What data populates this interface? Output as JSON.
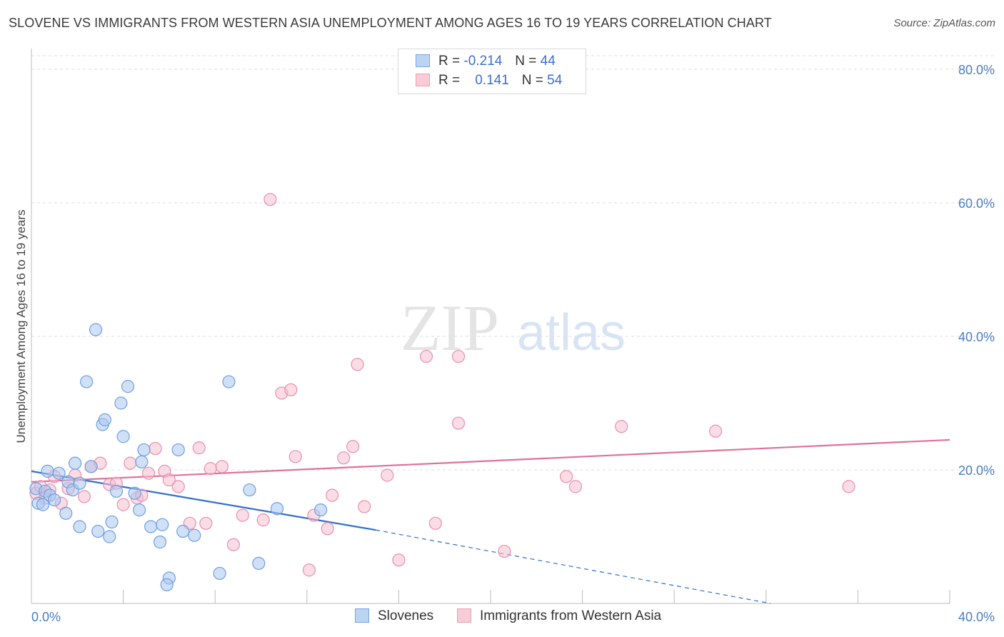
{
  "title": "SLOVENE VS IMMIGRANTS FROM WESTERN ASIA UNEMPLOYMENT AMONG AGES 16 TO 19 YEARS CORRELATION CHART",
  "source": "Source: ZipAtlas.com",
  "watermark": {
    "zip": "ZIP",
    "atlas": "atlas"
  },
  "legend": {
    "rows": [
      {
        "r_label": "R =",
        "r_value": "-0.214",
        "n_label": "N =",
        "n_value": "44"
      },
      {
        "r_label": "R =",
        "r_value": "0.141",
        "n_label": "N =",
        "n_value": "54"
      }
    ]
  },
  "colors": {
    "blue_fill": "#a9c6ee",
    "blue_stroke": "#6f9fe0",
    "blue_line": "#2f6fcf",
    "pink_fill": "#f6bfd0",
    "pink_stroke": "#e98fae",
    "pink_line": "#e0709a",
    "tick_text": "#4a7cc7",
    "grid": "#dddddd"
  },
  "chart_data": {
    "type": "scatter",
    "title": "SLOVENE VS IMMIGRANTS FROM WESTERN ASIA UNEMPLOYMENT AMONG AGES 16 TO 19 YEARS CORRELATION CHART",
    "xlabel": "",
    "ylabel": "Unemployment Among Ages 16 to 19 years",
    "xlim": [
      0,
      40
    ],
    "ylim": [
      0,
      80
    ],
    "x_tick_labels": [
      "0.0%",
      "40.0%"
    ],
    "y_ticks": [
      20,
      40,
      60,
      80
    ],
    "y_tick_labels": [
      "20.0%",
      "40.0%",
      "60.0%",
      "80.0%"
    ],
    "grid": true,
    "legend_position": "bottom",
    "series": [
      {
        "name": "Slovenes",
        "color": "#a9c6ee",
        "points": [
          [
            0.2,
            17.2
          ],
          [
            0.3,
            15.0
          ],
          [
            0.5,
            14.8
          ],
          [
            0.6,
            16.8
          ],
          [
            0.7,
            19.8
          ],
          [
            0.8,
            16.2
          ],
          [
            1.0,
            15.5
          ],
          [
            1.2,
            19.5
          ],
          [
            1.5,
            13.5
          ],
          [
            1.6,
            18.2
          ],
          [
            1.8,
            17.0
          ],
          [
            1.9,
            21.0
          ],
          [
            2.1,
            18.0
          ],
          [
            2.1,
            11.5
          ],
          [
            2.4,
            33.2
          ],
          [
            2.6,
            20.5
          ],
          [
            2.9,
            10.8
          ],
          [
            3.1,
            26.8
          ],
          [
            3.2,
            27.5
          ],
          [
            3.4,
            10.0
          ],
          [
            3.5,
            12.2
          ],
          [
            3.7,
            16.8
          ],
          [
            3.9,
            30.0
          ],
          [
            4.0,
            25.0
          ],
          [
            4.2,
            32.5
          ],
          [
            4.5,
            16.5
          ],
          [
            4.7,
            14.0
          ],
          [
            4.8,
            21.2
          ],
          [
            4.9,
            23.0
          ],
          [
            5.2,
            11.5
          ],
          [
            5.6,
            9.2
          ],
          [
            5.7,
            11.8
          ],
          [
            6.0,
            3.8
          ],
          [
            5.9,
            2.8
          ],
          [
            6.6,
            10.8
          ],
          [
            7.1,
            10.2
          ],
          [
            8.2,
            4.5
          ],
          [
            8.6,
            33.2
          ],
          [
            9.5,
            17.0
          ],
          [
            9.9,
            6.0
          ],
          [
            10.7,
            14.2
          ],
          [
            12.6,
            14.0
          ],
          [
            2.8,
            41.0
          ],
          [
            6.4,
            23.0
          ]
        ]
      },
      {
        "name": "Immigrants from Western Asia",
        "color": "#f6bfd0",
        "points": [
          [
            0.2,
            16.5
          ],
          [
            0.4,
            17.5
          ],
          [
            0.6,
            15.8
          ],
          [
            0.8,
            17.0
          ],
          [
            1.0,
            19.0
          ],
          [
            1.3,
            15.0
          ],
          [
            1.6,
            17.2
          ],
          [
            1.9,
            19.2
          ],
          [
            2.3,
            16.0
          ],
          [
            2.6,
            20.5
          ],
          [
            3.0,
            21.0
          ],
          [
            3.4,
            17.8
          ],
          [
            3.7,
            18.0
          ],
          [
            4.0,
            14.8
          ],
          [
            4.3,
            21.0
          ],
          [
            4.6,
            15.8
          ],
          [
            4.8,
            16.2
          ],
          [
            5.1,
            19.5
          ],
          [
            5.4,
            23.2
          ],
          [
            5.8,
            19.8
          ],
          [
            6.0,
            18.5
          ],
          [
            6.4,
            17.5
          ],
          [
            6.9,
            12.0
          ],
          [
            7.3,
            23.3
          ],
          [
            7.6,
            12.0
          ],
          [
            7.8,
            20.2
          ],
          [
            8.3,
            20.5
          ],
          [
            8.8,
            8.8
          ],
          [
            9.2,
            13.2
          ],
          [
            10.1,
            12.5
          ],
          [
            10.4,
            60.5
          ],
          [
            10.9,
            31.5
          ],
          [
            11.3,
            32.0
          ],
          [
            11.5,
            22.0
          ],
          [
            12.3,
            13.2
          ],
          [
            12.9,
            11.2
          ],
          [
            13.1,
            16.2
          ],
          [
            13.6,
            21.8
          ],
          [
            14.0,
            23.5
          ],
          [
            14.2,
            35.8
          ],
          [
            14.5,
            14.5
          ],
          [
            15.5,
            19.2
          ],
          [
            16.0,
            6.5
          ],
          [
            17.2,
            37.0
          ],
          [
            17.6,
            12.0
          ],
          [
            18.6,
            37.0
          ],
          [
            18.6,
            27.0
          ],
          [
            20.6,
            7.8
          ],
          [
            23.3,
            19.0
          ],
          [
            23.7,
            17.5
          ],
          [
            25.7,
            26.5
          ],
          [
            29.8,
            25.8
          ],
          [
            35.6,
            17.5
          ],
          [
            12.1,
            5.0
          ]
        ]
      }
    ],
    "trendlines": [
      {
        "series": "Slovenes",
        "x": [
          0,
          15
        ],
        "y": [
          19.8,
          11.0
        ],
        "dashed_to": [
          40,
          -5.0
        ]
      },
      {
        "series": "Immigrants from Western Asia",
        "x": [
          0,
          40
        ],
        "y": [
          18.2,
          24.5
        ]
      }
    ]
  }
}
